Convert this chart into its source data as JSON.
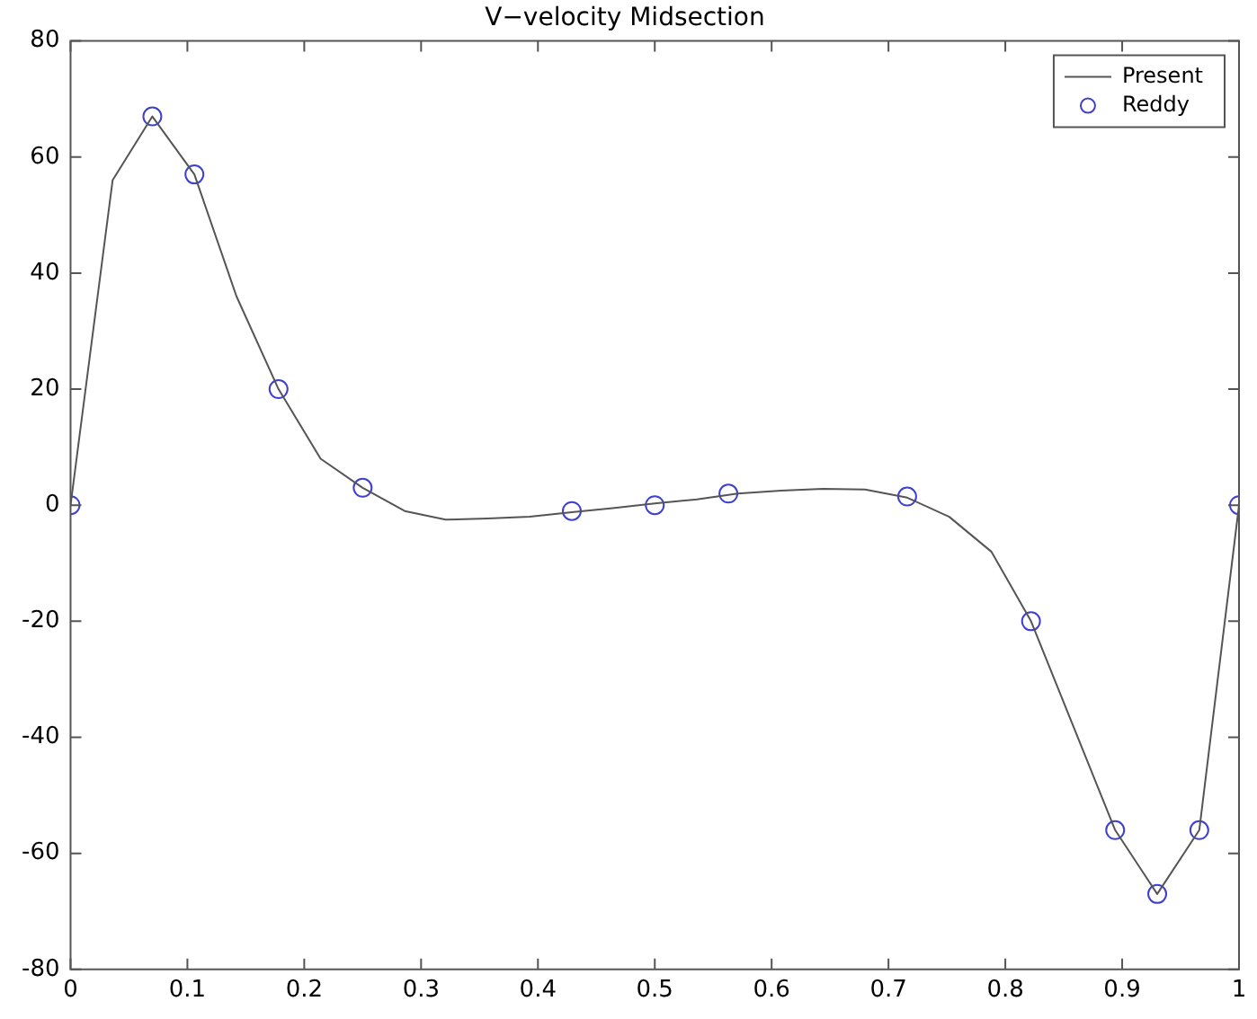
{
  "chart_data": {
    "type": "line",
    "title": "V−velocity Midsection",
    "xlim": [
      0,
      1
    ],
    "xticks": [
      0,
      {
        "value": 0.1,
        "label": "0.1"
      },
      {
        "value": 0.2,
        "label": "0.2"
      },
      {
        "value": 0.3,
        "label": "0.3"
      },
      {
        "value": 0.4,
        "label": "0.4"
      },
      {
        "value": 0.5,
        "label": "0.5"
      },
      {
        "value": 0.6,
        "label": "0.6"
      },
      {
        "value": 0.7,
        "label": "0.7"
      },
      {
        "value": 0.8,
        "label": "0.8"
      },
      {
        "value": 0.9,
        "label": "0.9"
      },
      1
    ],
    "ylim": [
      -80,
      80
    ],
    "yticks": [
      -80,
      -60,
      -40,
      -20,
      0,
      20,
      40,
      60,
      80
    ],
    "grid": false,
    "legend": "top right",
    "series": [
      {
        "name": "Present",
        "marker": "none",
        "line_style": "solid",
        "color": "#555555",
        "x": [
          0,
          0.036,
          0.07,
          0.106,
          0.142,
          0.178,
          0.214,
          0.25,
          0.286,
          0.321,
          0.357,
          0.393,
          0.429,
          0.464,
          0.5,
          0.536,
          0.571,
          0.608,
          0.644,
          0.68,
          0.716,
          0.752,
          0.788,
          0.822,
          0.858,
          0.894,
          0.93,
          0.966,
          1
        ],
        "values": [
          0,
          56,
          67,
          57,
          36,
          20,
          8,
          3,
          -1,
          -2.5,
          -2.3,
          -2,
          -1.2,
          -0.5,
          0.3,
          1,
          2,
          2.5,
          2.8,
          2.7,
          1.3,
          -2,
          -8,
          -20,
          -38,
          -56,
          -67,
          -56,
          0
        ]
      },
      {
        "name": "Reddy",
        "type": "scatter",
        "marker": "circle",
        "color": "#4040d0",
        "x": [
          0,
          0.07,
          0.106,
          0.178,
          0.25,
          0.429,
          0.5,
          0.563,
          0.716,
          0.822,
          0.894,
          0.93,
          0.966,
          1
        ],
        "values": [
          0,
          67,
          57,
          20,
          3,
          -1,
          0,
          2,
          1.5,
          -20,
          -56,
          -67,
          -56,
          0
        ]
      }
    ]
  }
}
